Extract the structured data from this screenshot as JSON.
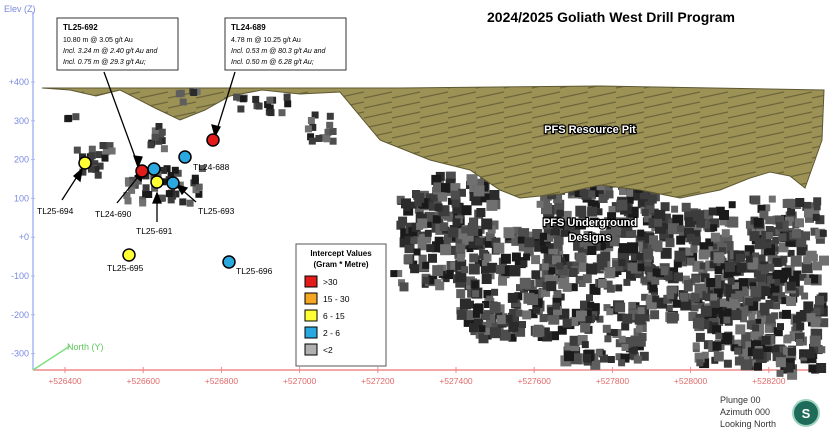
{
  "title": "2024/2025 Goliath West Drill Program",
  "axes": {
    "elev_label": "Elev (Z)",
    "north_label": "North (Y)",
    "elev_ticks": [
      "+400",
      "300",
      "200",
      "100",
      "+0",
      "-100",
      "-200",
      "-300"
    ],
    "easting_ticks": [
      "+526400",
      "+526600",
      "+526800",
      "+527000",
      "+527200",
      "+527400",
      "+527600",
      "+527800",
      "+528000",
      "+528200"
    ]
  },
  "features": {
    "pit_label": "PFS Resource Pit",
    "underground_label_line1": "PFS Underground",
    "underground_label_line2": "Designs"
  },
  "callouts": {
    "tl25_692": {
      "title": "TL25-692",
      "lines": [
        "10.80 m @ 3.05 g/t Au",
        "Incl. 3.24 m @ 2.40 g/t Au and",
        "Incl. 0.75 m @ 29.3 g/t Au;"
      ]
    },
    "tl24_689": {
      "title": "TL24-689",
      "lines": [
        "4.78 m @ 10.25 g/t Au",
        "Incl. 0.53 m @ 80.3 g/t Au and",
        "Incl. 0.50 m @ 6.28 g/t Au;"
      ]
    }
  },
  "intercepts": [
    {
      "label": "TL25-692",
      "class": "red"
    },
    {
      "label": "TL24-689",
      "class": "red"
    },
    {
      "label": "TL24-688",
      "class": "blue"
    },
    {
      "label": "TL25-694",
      "class": "yellow"
    },
    {
      "label": "TL24-690",
      "class": "blue"
    },
    {
      "label": "TL25-693",
      "class": "blue"
    },
    {
      "label": "TL25-691",
      "class": "yellow"
    },
    {
      "label": "TL25-695",
      "class": "yellow"
    },
    {
      "label": "TL25-696",
      "class": "blue"
    }
  ],
  "legend": {
    "title_line1": "Intercept Values",
    "title_line2": "(Gram * Metre)",
    "items": [
      {
        "label": ">30",
        "color": "#e31b1b"
      },
      {
        "label": "15 - 30",
        "color": "#f5a623"
      },
      {
        "label": "6 - 15",
        "color": "#ffff33"
      },
      {
        "label": "2 - 6",
        "color": "#29a9e0"
      },
      {
        "label": "<2",
        "color": "#b0b0b0"
      }
    ]
  },
  "view_info": [
    "Plunge 00",
    "Azimuth 000",
    "Looking North"
  ],
  "colors": {
    "pit": "#9c9256",
    "pit_dark": "#6d663a",
    "axis": "#aab8f0",
    "easting_axis": "#f08a8a",
    "tick_text": "#e06a6a",
    "north_axis": "#7ee07e"
  },
  "logo_letter": "S"
}
